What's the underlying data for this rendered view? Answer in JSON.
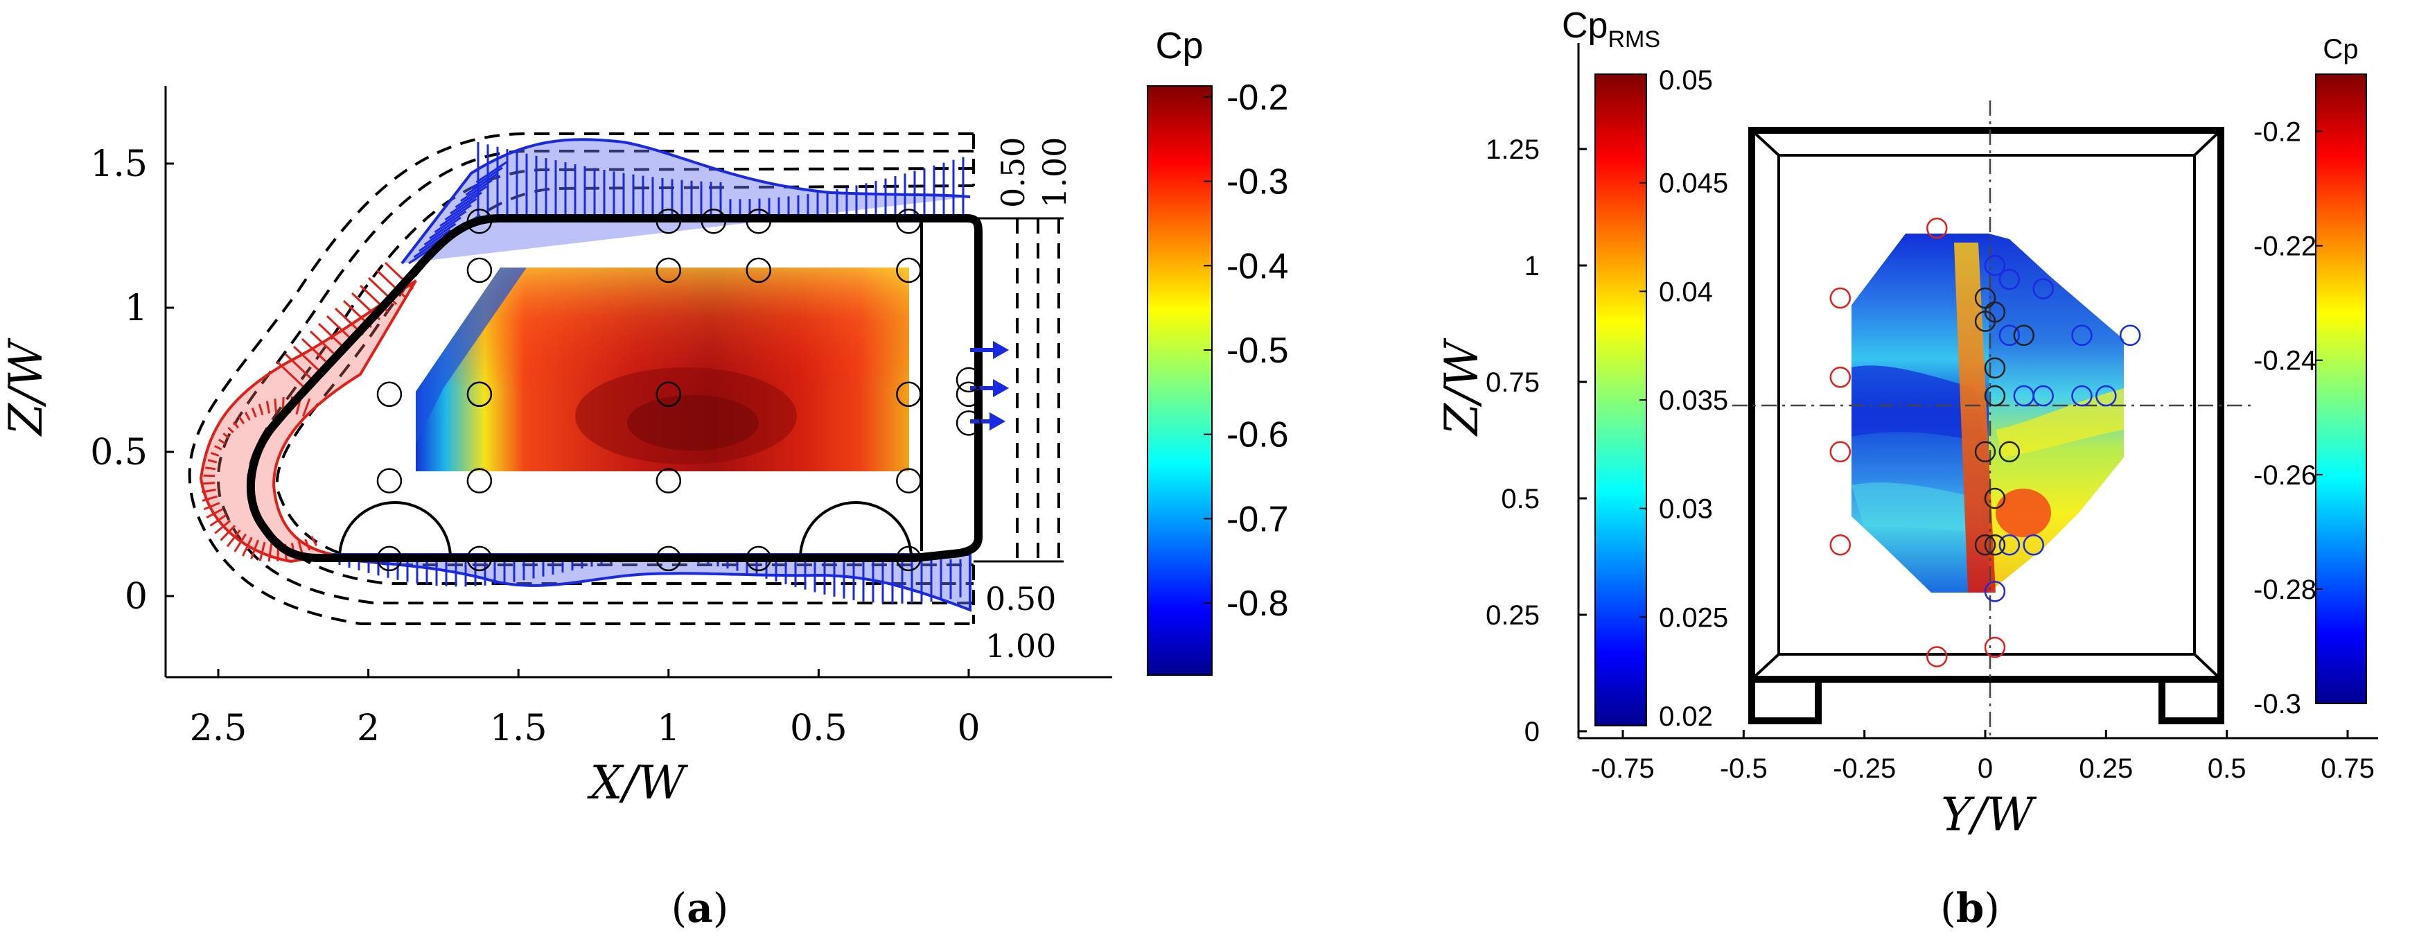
{
  "figure": {
    "caption_a": "a",
    "caption_b": "b"
  },
  "colors": {
    "accent_red": "#e0201a",
    "accent_blue": "#1a2ae0"
  },
  "chart_data": [
    {
      "id": "a",
      "type": "heatmap",
      "title": "",
      "xlabel": "X/W",
      "ylabel": "Z/W",
      "xlim": [
        2.8,
        -0.45
      ],
      "ylim": [
        -0.25,
        1.75
      ],
      "x_ticks": [
        "2.5",
        "2",
        "1.5",
        "1",
        "0.5",
        "0"
      ],
      "x_tick_values": [
        2.5,
        2,
        1.5,
        1,
        0.5,
        0
      ],
      "y_ticks": [
        "0",
        "0.5",
        "1",
        "1.5"
      ],
      "y_tick_values": [
        0,
        0.5,
        1,
        1.5
      ],
      "colorbar": {
        "label": "Cp",
        "range": [
          -0.9,
          -0.2
        ],
        "ticks": [
          "-0.2",
          "-0.3",
          "-0.4",
          "-0.5",
          "-0.6",
          "-0.7",
          "-0.8"
        ],
        "tick_values": [
          -0.2,
          -0.3,
          -0.4,
          -0.5,
          -0.6,
          -0.7,
          -0.8
        ]
      },
      "reference_labels": {
        "roof_050": "0.50",
        "roof_100": "1.00",
        "floor_050": "0.50",
        "floor_100": "1.00"
      },
      "taps": [
        [
          1.63,
          1.3
        ],
        [
          1.0,
          1.3
        ],
        [
          0.85,
          1.3
        ],
        [
          0.7,
          1.3
        ],
        [
          0.2,
          1.3
        ],
        [
          1.63,
          1.13
        ],
        [
          1.0,
          1.13
        ],
        [
          0.7,
          1.13
        ],
        [
          0.2,
          1.13
        ],
        [
          1.93,
          0.7
        ],
        [
          1.63,
          0.7
        ],
        [
          1.0,
          0.7
        ],
        [
          0.2,
          0.7
        ],
        [
          1.93,
          0.4
        ],
        [
          1.63,
          0.4
        ],
        [
          1.0,
          0.4
        ],
        [
          0.2,
          0.4
        ],
        [
          1.93,
          0.13
        ],
        [
          1.63,
          0.13
        ],
        [
          1.0,
          0.13
        ],
        [
          0.7,
          0.13
        ],
        [
          0.2,
          0.13
        ],
        [
          0.0,
          0.75
        ],
        [
          0.0,
          0.7
        ],
        [
          0.0,
          0.6
        ]
      ],
      "contour_field": [
        [
          -0.85,
          -0.55,
          -0.4,
          -0.33,
          -0.3,
          -0.29,
          -0.28,
          -0.29,
          -0.3,
          -0.32,
          -0.35,
          -0.42
        ],
        [
          -0.72,
          -0.42,
          -0.3,
          -0.26,
          -0.25,
          -0.25,
          -0.24,
          -0.25,
          -0.27,
          -0.3,
          -0.34,
          -0.4
        ],
        [
          -0.52,
          -0.3,
          -0.23,
          -0.22,
          -0.21,
          -0.2,
          -0.2,
          -0.22,
          -0.26,
          -0.29,
          -0.32,
          -0.38
        ],
        [
          -0.4,
          -0.26,
          -0.22,
          -0.22,
          -0.21,
          -0.2,
          -0.21,
          -0.23,
          -0.26,
          -0.29,
          -0.32,
          -0.36
        ],
        [
          -0.33,
          -0.26,
          -0.24,
          -0.23,
          -0.22,
          -0.22,
          -0.23,
          -0.25,
          -0.27,
          -0.29,
          -0.31,
          -0.34
        ]
      ]
    },
    {
      "id": "b",
      "type": "heatmap",
      "title": "",
      "xlabel": "Y/W",
      "ylabel": "Z/W",
      "xlim": [
        -0.9,
        0.9
      ],
      "ylim": [
        0,
        1.45
      ],
      "x_ticks": [
        "-0.75",
        "-0.5",
        "-0.25",
        "0",
        "0.25",
        "0.5",
        "0.75"
      ],
      "x_tick_values": [
        -0.75,
        -0.5,
        -0.25,
        0,
        0.25,
        0.5,
        0.75
      ],
      "y_ticks": [
        "0",
        "0.25",
        "0.5",
        "0.75",
        "1",
        "1.25"
      ],
      "y_tick_values": [
        0,
        0.25,
        0.5,
        0.75,
        1,
        1.25
      ],
      "colorbar_left": {
        "label": "Cp",
        "label_sub": "RMS",
        "range": [
          0.02,
          0.05
        ],
        "ticks": [
          "0.05",
          "0.045",
          "0.04",
          "0.035",
          "0.03",
          "0.025",
          "0.02"
        ],
        "tick_values": [
          0.05,
          0.045,
          0.04,
          0.035,
          0.03,
          0.025,
          0.02
        ]
      },
      "colorbar_right": {
        "label": "Cp",
        "range": [
          -0.3,
          -0.19
        ],
        "ticks": [
          "-0.2",
          "-0.22",
          "-0.24",
          "-0.26",
          "-0.28",
          "-0.3"
        ],
        "tick_values": [
          -0.2,
          -0.22,
          -0.24,
          -0.26,
          -0.28,
          -0.3
        ]
      },
      "taps_left_red": [
        [
          -0.1,
          1.08
        ],
        [
          -0.3,
          0.93
        ],
        [
          -0.3,
          0.76
        ],
        [
          -0.3,
          0.6
        ],
        [
          -0.3,
          0.4
        ],
        [
          -0.1,
          0.16
        ]
      ],
      "taps_left_black": [
        [
          0.0,
          0.93
        ],
        [
          0.0,
          0.88
        ],
        [
          0.0,
          0.6
        ],
        [
          0.0,
          0.4
        ]
      ],
      "taps_right_blue": [
        [
          0.02,
          1.0
        ],
        [
          0.05,
          0.97
        ],
        [
          0.12,
          0.95
        ],
        [
          0.05,
          0.85
        ],
        [
          0.2,
          0.85
        ],
        [
          0.3,
          0.85
        ],
        [
          0.08,
          0.72
        ],
        [
          0.12,
          0.72
        ],
        [
          0.2,
          0.72
        ],
        [
          0.25,
          0.72
        ],
        [
          0.05,
          0.4
        ],
        [
          0.1,
          0.4
        ],
        [
          0.02,
          0.3
        ]
      ],
      "taps_right_black": [
        [
          0.02,
          0.9
        ],
        [
          0.08,
          0.85
        ],
        [
          0.02,
          0.78
        ],
        [
          0.02,
          0.72
        ],
        [
          0.05,
          0.6
        ],
        [
          0.02,
          0.5
        ],
        [
          0.02,
          0.4
        ]
      ],
      "taps_right_red": [
        [
          0.02,
          0.18
        ]
      ],
      "contour_field_left": [
        [
          -0.3,
          -0.29,
          -0.3,
          -0.28
        ],
        [
          -0.29,
          -0.27,
          -0.28,
          -0.26
        ],
        [
          -0.28,
          -0.26,
          -0.26,
          -0.24
        ],
        [
          -0.3,
          -0.28,
          -0.27,
          -0.24
        ],
        [
          -0.27,
          -0.25,
          -0.26,
          -0.22
        ],
        [
          -0.28,
          -0.27,
          -0.27,
          -0.21
        ]
      ],
      "contour_field_right": [
        [
          -0.29,
          -0.29,
          -0.29,
          -0.29
        ],
        [
          -0.27,
          -0.28,
          -0.29,
          -0.29
        ],
        [
          -0.26,
          -0.27,
          -0.28,
          -0.27
        ],
        [
          -0.25,
          -0.25,
          -0.24,
          -0.25
        ],
        [
          -0.21,
          -0.22,
          -0.24,
          -0.24
        ],
        [
          -0.19,
          -0.21,
          -0.23,
          -0.24
        ]
      ]
    }
  ]
}
